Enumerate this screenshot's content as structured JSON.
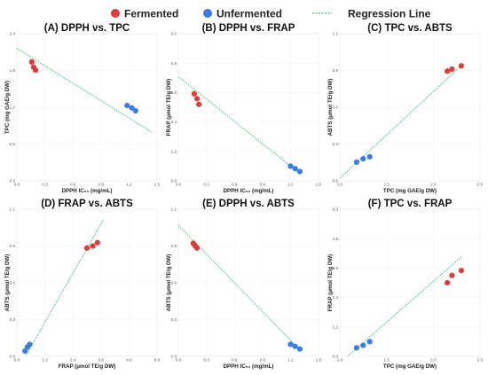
{
  "legend": {
    "fermented": {
      "label": "Fermented",
      "color": "#e03a3a"
    },
    "unfermented": {
      "label": "Unfermented",
      "color": "#3b7be6"
    },
    "regression": {
      "label": "Regression Line",
      "color": "#2fc06a"
    }
  },
  "chart_data": [
    {
      "type": "scatter",
      "title": "(A) DPPH vs. TPC",
      "xlabel": "DPPH IC₅₀ (mg/mL)",
      "ylabel": "TPC (mg GAE/g DW)",
      "xlim": [
        0,
        1.5
      ],
      "ylim": [
        0,
        2.5
      ],
      "xticks": [
        "0.0",
        "0.3",
        "0.6",
        "0.9",
        "1.2",
        "1.5"
      ],
      "yticks": [
        "0.0",
        "0.6",
        "1.2",
        "1.8",
        "2.4"
      ],
      "series": [
        {
          "name": "Fermented",
          "points": [
            [
              0.16,
              2.02
            ],
            [
              0.18,
              1.93
            ],
            [
              0.2,
              1.88
            ]
          ]
        },
        {
          "name": "Unfermented",
          "points": [
            [
              1.18,
              1.28
            ],
            [
              1.23,
              1.24
            ],
            [
              1.27,
              1.19
            ]
          ]
        }
      ],
      "regression": [
        [
          0.0,
          2.25
        ],
        [
          1.45,
          0.82
        ]
      ]
    },
    {
      "type": "scatter",
      "title": "(B) DPPH vs. FRAP",
      "xlabel": "DPPH IC₅₀ (mg/mL)",
      "ylabel": "FRAP (μmol TE/g DW)",
      "xlim": [
        0,
        1.5
      ],
      "ylim": [
        0,
        6.0
      ],
      "xticks": [
        "0.0",
        "0.3",
        "0.6",
        "0.9",
        "1.2",
        "1.5"
      ],
      "yticks": [
        "0.0",
        "1.2",
        "2.4",
        "3.6",
        "4.8",
        "6.0"
      ],
      "series": [
        {
          "name": "Fermented",
          "points": [
            [
              0.17,
              3.55
            ],
            [
              0.2,
              3.35
            ],
            [
              0.22,
              3.12
            ]
          ]
        },
        {
          "name": "Unfermented",
          "points": [
            [
              1.2,
              0.6
            ],
            [
              1.25,
              0.5
            ],
            [
              1.3,
              0.38
            ]
          ]
        }
      ],
      "regression": [
        [
          0.0,
          4.25
        ],
        [
          1.3,
          0.3
        ]
      ]
    },
    {
      "type": "scatter",
      "title": "(C) TPC vs. ABTS",
      "xlabel": "TPC (mg GAE/g DW)",
      "ylabel": "ABTS (μmol TE/g DW)",
      "xlim": [
        1.0,
        2.5
      ],
      "ylim": [
        0.0,
        1.1
      ],
      "xticks": [
        "1.0",
        "1.5",
        "2.0",
        "2.5"
      ],
      "yticks": [
        "0.0",
        "0.3",
        "0.6",
        "0.9",
        "1.1"
      ],
      "series": [
        {
          "name": "Fermented",
          "points": [
            [
              2.15,
              0.82
            ],
            [
              2.2,
              0.835
            ],
            [
              2.3,
              0.86
            ]
          ]
        },
        {
          "name": "Unfermented",
          "points": [
            [
              1.18,
              0.14
            ],
            [
              1.25,
              0.165
            ],
            [
              1.32,
              0.18
            ]
          ]
        }
      ],
      "regression": [
        [
          1.0,
          0.02
        ],
        [
          2.3,
          0.86
        ]
      ]
    },
    {
      "type": "scatter",
      "title": "(D) FRAP vs. ABTS",
      "xlabel": "FRAP (μmol TE/g DW)",
      "ylabel": "ABTS (μmol TE/g DW)",
      "xlim": [
        0.0,
        6.0
      ],
      "ylim": [
        0.0,
        1.1
      ],
      "xticks": [
        "0.0",
        "1.2",
        "2.4",
        "3.6",
        "4.8",
        "6.0"
      ],
      "yticks": [
        "0.0",
        "0.3",
        "0.6",
        "0.9",
        "1.1"
      ],
      "series": [
        {
          "name": "Fermented",
          "points": [
            [
              3.0,
              0.81
            ],
            [
              3.25,
              0.825
            ],
            [
              3.45,
              0.85
            ]
          ]
        },
        {
          "name": "Unfermented",
          "points": [
            [
              0.35,
              0.04
            ],
            [
              0.45,
              0.07
            ],
            [
              0.55,
              0.09
            ]
          ]
        }
      ],
      "regression": [
        [
          0.4,
          0.01
        ],
        [
          3.7,
          1.02
        ]
      ]
    },
    {
      "type": "scatter",
      "title": "(E) DPPH vs. ABTS",
      "xlabel": "DPPH IC₅₀ (mg/mL)",
      "ylabel": "ABTS (μmol TE/g DW)",
      "xlim": [
        0,
        1.5
      ],
      "ylim": [
        0.0,
        1.1
      ],
      "xticks": [
        "0.0",
        "0.3",
        "0.6",
        "0.9",
        "1.2",
        "1.5"
      ],
      "yticks": [
        "0.0",
        "0.3",
        "0.6",
        "0.9",
        "1.1"
      ],
      "series": [
        {
          "name": "Fermented",
          "points": [
            [
              0.16,
              0.845
            ],
            [
              0.18,
              0.825
            ],
            [
              0.2,
              0.81
            ]
          ]
        },
        {
          "name": "Unfermented",
          "points": [
            [
              1.2,
              0.09
            ],
            [
              1.25,
              0.075
            ],
            [
              1.3,
              0.055
            ]
          ]
        }
      ],
      "regression": [
        [
          0.0,
          0.98
        ],
        [
          1.3,
          0.05
        ]
      ]
    },
    {
      "type": "scatter",
      "title": "(F) TPC vs. FRAP",
      "xlabel": "TPC (mg GAE/g DW)",
      "ylabel": "FRAP (μmol TE/g DW)",
      "xlim": [
        1.0,
        2.5
      ],
      "ylim": [
        0.0,
        6.0
      ],
      "xticks": [
        "1.0",
        "1.5",
        "2.0",
        "2.5"
      ],
      "yticks": [
        "0.0",
        "1.2",
        "2.4",
        "3.6",
        "4.8",
        "6.0"
      ],
      "series": [
        {
          "name": "Fermented",
          "points": [
            [
              2.15,
              3.0
            ],
            [
              2.2,
              3.3
            ],
            [
              2.3,
              3.5
            ]
          ]
        },
        {
          "name": "Unfermented",
          "points": [
            [
              1.18,
              0.35
            ],
            [
              1.25,
              0.45
            ],
            [
              1.32,
              0.6
            ]
          ]
        }
      ],
      "regression": [
        [
          1.05,
          -0.1
        ],
        [
          2.3,
          4.05
        ]
      ]
    }
  ]
}
